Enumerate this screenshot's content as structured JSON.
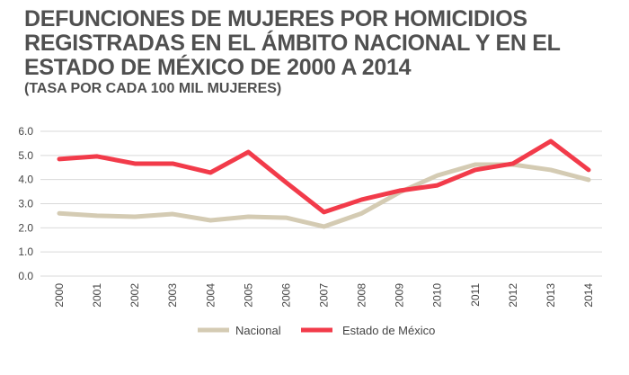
{
  "chart_data": {
    "type": "line",
    "title": "DEFUNCIONES DE MUJERES POR HOMICIDIOS REGISTRADAS EN EL ÁMBITO NACIONAL Y EN EL ESTADO DE MÉXICO DE 2000 A 2014",
    "subtitle": "(TASA POR CADA 100 MIL MUJERES)",
    "xlabel": "",
    "ylabel": "",
    "x": [
      "2000",
      "2001",
      "2002",
      "2003",
      "2004",
      "2005",
      "2006",
      "2007",
      "2008",
      "2009",
      "2010",
      "2011",
      "2012",
      "2013",
      "2014"
    ],
    "ylim": [
      0,
      6
    ],
    "yticks": [
      "0.0",
      "1.0",
      "2.0",
      "3.0",
      "4.0",
      "5.0",
      "6.0"
    ],
    "grid": true,
    "legend_position": "bottom",
    "series": [
      {
        "name": "Nacional",
        "color": "#d4cbb3",
        "values": [
          2.6,
          2.5,
          2.46,
          2.57,
          2.31,
          2.46,
          2.42,
          2.05,
          2.6,
          3.47,
          4.17,
          4.62,
          4.62,
          4.4,
          3.99
        ]
      },
      {
        "name": "Estado de México",
        "color": "#f23b4a",
        "values": [
          4.85,
          4.96,
          4.66,
          4.66,
          4.29,
          5.14,
          3.88,
          2.65,
          3.17,
          3.54,
          3.76,
          4.4,
          4.66,
          5.59,
          4.4
        ]
      }
    ]
  }
}
